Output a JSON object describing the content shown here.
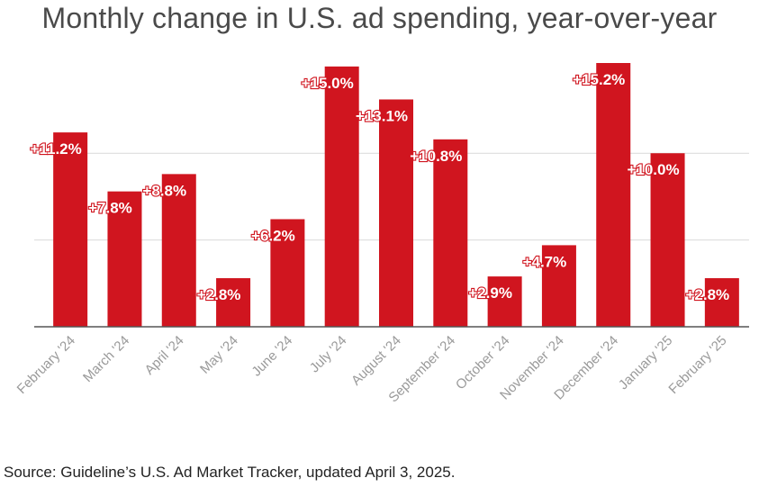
{
  "page": {
    "title": "Monthly change in U.S. ad spending, year-over-year",
    "source": "Source: Guideline’s U.S. Ad Market Tracker, updated April 3, 2025."
  },
  "colors": {
    "bar": "#d0151f",
    "grid": "#d9d9d9",
    "axis": "#555555",
    "label_text": "#ffffff"
  },
  "chart_data": {
    "type": "bar",
    "title": "Monthly change in U.S. ad spending, year-over-year",
    "xlabel": "",
    "ylabel": "",
    "ylim": [
      0,
      15.2
    ],
    "grid": true,
    "legend": "none",
    "categories": [
      "February '24",
      "March '24",
      "April '24",
      "May '24",
      "June '24",
      "July '24",
      "August '24",
      "September '24",
      "October '24",
      "November '24",
      "December '24",
      "January '25",
      "February '25"
    ],
    "values": [
      11.2,
      7.8,
      8.8,
      2.8,
      6.2,
      15.0,
      13.1,
      10.8,
      2.9,
      4.7,
      15.2,
      10.0,
      2.8
    ],
    "data_labels": [
      "+11.2%",
      "+7.8%",
      "+8.8%",
      "+2.8%",
      "+6.2%",
      "+15.0%",
      "+13.1%",
      "+10.8%",
      "+2.9%",
      "+4.7%",
      "+15.2%",
      "+10.0%",
      "+2.8%"
    ]
  }
}
